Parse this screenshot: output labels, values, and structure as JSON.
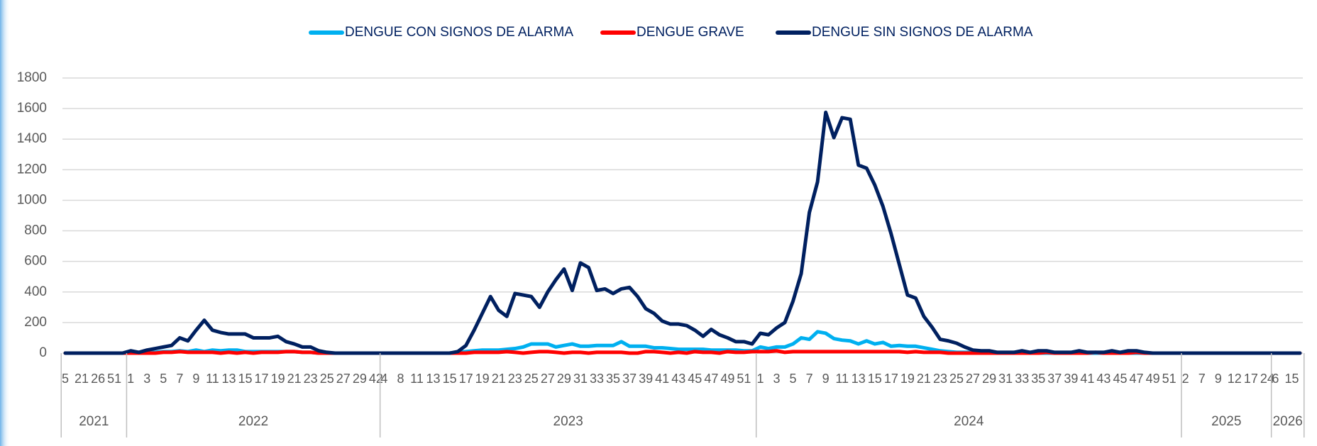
{
  "chart_data": {
    "type": "line",
    "categories": [
      "5",
      null,
      "21",
      null,
      "26",
      null,
      "51",
      null,
      "1",
      null,
      "3",
      null,
      "5",
      null,
      "7",
      null,
      "9",
      null,
      "11",
      null,
      "13",
      null,
      "15",
      null,
      "17",
      null,
      "19",
      null,
      "21",
      null,
      "23",
      null,
      "25",
      null,
      "27",
      null,
      "29",
      null,
      "42",
      "4",
      null,
      "8",
      null,
      "11",
      null,
      "13",
      null,
      "15",
      null,
      "17",
      null,
      "19",
      null,
      "21",
      null,
      "23",
      null,
      "25",
      null,
      "27",
      null,
      "29",
      null,
      "31",
      null,
      "33",
      null,
      "35",
      null,
      "37",
      null,
      "39",
      null,
      "41",
      null,
      "43",
      null,
      "45",
      null,
      "47",
      null,
      "49",
      null,
      "51",
      null,
      "1",
      null,
      "3",
      null,
      "5",
      null,
      "7",
      null,
      "9",
      null,
      "11",
      null,
      "13",
      null,
      "15",
      null,
      "17",
      null,
      "19",
      null,
      "21",
      null,
      "23",
      null,
      "25",
      null,
      "27",
      null,
      "29",
      null,
      "31",
      null,
      "33",
      null,
      "35",
      null,
      "37",
      null,
      "39",
      null,
      "41",
      null,
      "43",
      null,
      "45",
      null,
      "47",
      null,
      "49",
      null,
      "51",
      null,
      "2",
      null,
      "7",
      null,
      "9",
      null,
      "12",
      null,
      "17",
      null,
      "24",
      "6",
      null,
      "15",
      null
    ],
    "year_groups": [
      {
        "label": "2021",
        "count": 8
      },
      {
        "label": "2022",
        "count": 31
      },
      {
        "label": "2023",
        "count": 46
      },
      {
        "label": "2024",
        "count": 52
      },
      {
        "label": "2025",
        "count": 11
      },
      {
        "label": "2026",
        "count": 4
      }
    ],
    "series": [
      {
        "name": "DENGUE CON SIGNOS DE ALARMA",
        "color": "#00b0f0",
        "values": [
          0,
          0,
          0,
          0,
          0,
          0,
          0,
          0,
          0,
          0,
          5,
          5,
          10,
          10,
          15,
          10,
          20,
          10,
          20,
          15,
          20,
          20,
          10,
          10,
          10,
          10,
          10,
          10,
          10,
          5,
          5,
          0,
          0,
          0,
          0,
          0,
          0,
          0,
          0,
          0,
          0,
          0,
          0,
          0,
          0,
          0,
          0,
          0,
          5,
          10,
          15,
          20,
          20,
          20,
          25,
          30,
          40,
          60,
          60,
          60,
          40,
          50,
          60,
          45,
          45,
          50,
          50,
          50,
          75,
          45,
          45,
          45,
          35,
          35,
          30,
          25,
          25,
          25,
          25,
          20,
          20,
          20,
          20,
          15,
          15,
          40,
          30,
          40,
          40,
          60,
          100,
          90,
          140,
          130,
          95,
          85,
          80,
          60,
          80,
          60,
          70,
          45,
          50,
          45,
          45,
          35,
          25,
          15,
          10,
          5,
          5,
          5,
          5,
          5,
          0,
          0,
          0,
          0,
          0,
          0,
          0,
          0,
          0,
          0,
          0,
          0,
          0,
          0,
          0,
          0,
          0,
          0,
          0,
          0,
          0,
          0,
          0,
          0,
          0,
          0,
          0,
          0,
          0,
          0,
          0,
          0,
          0,
          0,
          0,
          0,
          0,
          0
        ]
      },
      {
        "name": "DENGUE GRAVE",
        "color": "#ff0000",
        "values": [
          0,
          0,
          0,
          0,
          0,
          0,
          0,
          0,
          0,
          0,
          0,
          0,
          5,
          5,
          10,
          5,
          5,
          5,
          5,
          0,
          5,
          0,
          5,
          0,
          5,
          5,
          5,
          10,
          10,
          5,
          5,
          0,
          0,
          0,
          0,
          0,
          0,
          0,
          0,
          0,
          0,
          0,
          0,
          0,
          0,
          0,
          0,
          0,
          0,
          0,
          5,
          5,
          5,
          5,
          10,
          5,
          0,
          5,
          10,
          10,
          5,
          0,
          5,
          5,
          0,
          5,
          5,
          5,
          5,
          0,
          0,
          10,
          10,
          5,
          0,
          5,
          0,
          10,
          5,
          5,
          0,
          10,
          5,
          5,
          10,
          10,
          10,
          15,
          5,
          10,
          10,
          10,
          10,
          10,
          10,
          10,
          10,
          10,
          10,
          10,
          10,
          10,
          10,
          5,
          10,
          5,
          5,
          5,
          0,
          0,
          0,
          0,
          0,
          0,
          0,
          0,
          0,
          0,
          0,
          0,
          5,
          0,
          0,
          0,
          0,
          0,
          5,
          0,
          0,
          0,
          0,
          5,
          0,
          0,
          0,
          0,
          0,
          0,
          0,
          0,
          0,
          0,
          0,
          0,
          0,
          0,
          0,
          0,
          0,
          0,
          0,
          0
        ]
      },
      {
        "name": "DENGUE SIN SIGNOS DE ALARMA",
        "color": "#002060",
        "values": [
          0,
          0,
          0,
          0,
          0,
          0,
          0,
          0,
          15,
          5,
          20,
          30,
          40,
          50,
          100,
          80,
          150,
          215,
          150,
          135,
          125,
          125,
          125,
          100,
          100,
          100,
          110,
          75,
          60,
          40,
          40,
          15,
          5,
          0,
          0,
          0,
          0,
          0,
          0,
          0,
          0,
          0,
          0,
          0,
          0,
          0,
          0,
          0,
          10,
          50,
          150,
          260,
          370,
          280,
          240,
          390,
          380,
          370,
          300,
          400,
          480,
          550,
          410,
          590,
          560,
          410,
          420,
          390,
          420,
          430,
          370,
          290,
          260,
          210,
          190,
          190,
          180,
          150,
          110,
          155,
          120,
          100,
          75,
          75,
          60,
          130,
          120,
          165,
          200,
          340,
          520,
          920,
          1120,
          1575,
          1410,
          1540,
          1530,
          1230,
          1210,
          1100,
          960,
          780,
          580,
          380,
          360,
          240,
          170,
          90,
          80,
          65,
          40,
          20,
          15,
          15,
          5,
          5,
          5,
          15,
          5,
          15,
          15,
          5,
          5,
          5,
          15,
          5,
          5,
          5,
          15,
          5,
          15,
          15,
          5,
          0,
          0,
          0,
          0,
          0,
          0,
          0,
          0,
          0,
          0,
          0,
          0,
          0,
          0,
          0,
          0,
          0,
          0,
          0
        ]
      }
    ],
    "ylim": [
      0,
      1800
    ],
    "yticks": [
      0,
      200,
      400,
      600,
      800,
      1000,
      1200,
      1400,
      1600,
      1800
    ],
    "grid": true,
    "legend": "top"
  }
}
